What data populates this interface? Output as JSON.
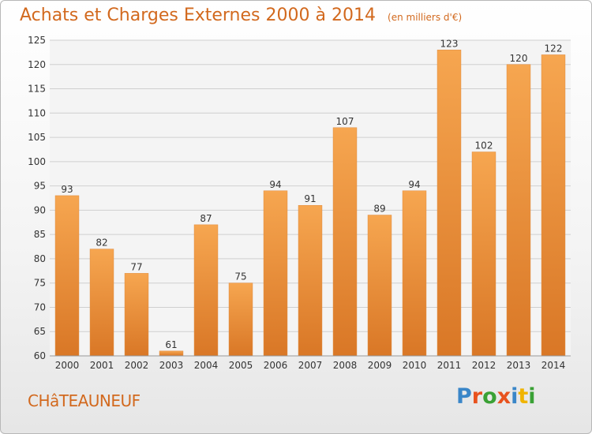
{
  "title": "Achats et Charges Externes 2000 à 2014",
  "unit_note": "(en milliers d'€)",
  "town": "CHâTEAUNEUF",
  "logo": {
    "text": "Proxiti",
    "letter_colors": [
      "#3a86c8",
      "#e8521e",
      "#3aa135",
      "#e8521e",
      "#3a86c8",
      "#f0b400",
      "#3aa135"
    ]
  },
  "colors": {
    "bar_light": "#f6a650",
    "bar_dark": "#d97726",
    "grid": "#cfcfcf",
    "text": "#333333"
  },
  "chart_data": {
    "type": "bar",
    "categories": [
      "2000",
      "2001",
      "2002",
      "2003",
      "2004",
      "2005",
      "2006",
      "2007",
      "2008",
      "2009",
      "2010",
      "2011",
      "2012",
      "2013",
      "2014"
    ],
    "values": [
      93,
      82,
      77,
      61,
      87,
      75,
      94,
      91,
      107,
      89,
      94,
      123,
      102,
      120,
      122
    ],
    "ylim": [
      60,
      125
    ],
    "yticks": [
      60,
      65,
      70,
      75,
      80,
      85,
      90,
      95,
      100,
      105,
      110,
      115,
      120,
      125
    ],
    "grid": true,
    "data_labels": true
  }
}
